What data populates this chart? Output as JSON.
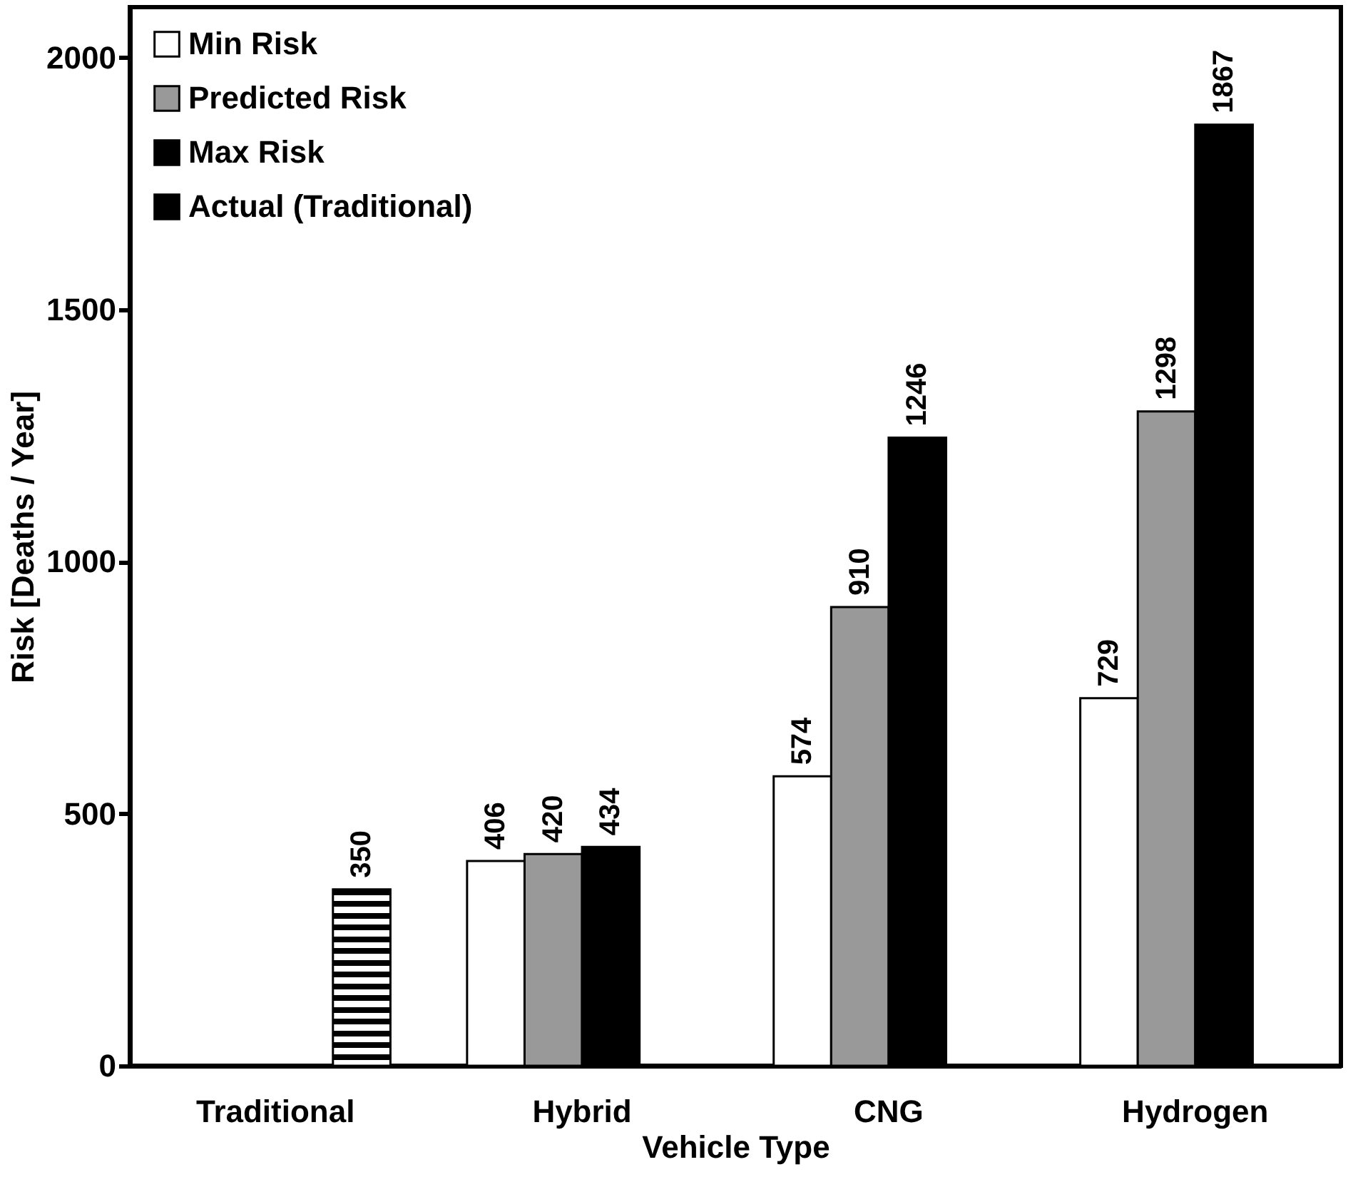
{
  "chart_data": {
    "type": "bar",
    "xlabel": "Vehicle Type",
    "ylabel": "Risk [Deaths / Year]",
    "categories": [
      "Traditional",
      "Hybrid",
      "CNG",
      "Hydrogen"
    ],
    "series": [
      {
        "name": "Min Risk",
        "color": "#ffffff",
        "values": [
          null,
          406,
          574,
          729
        ]
      },
      {
        "name": "Predicted Risk",
        "color": "#999999",
        "values": [
          null,
          420,
          910,
          1298
        ]
      },
      {
        "name": "Max Risk",
        "color": "#000000",
        "values": [
          null,
          434,
          1246,
          1867
        ]
      },
      {
        "name": "Actual (Traditional)",
        "color": "#000000",
        "values": [
          350,
          null,
          null,
          null
        ]
      }
    ],
    "ylim": [
      0,
      2100
    ],
    "yticks": [
      0,
      500,
      1000,
      1500,
      2000
    ],
    "grid": false,
    "legend": "top left",
    "data_labels": true
  }
}
